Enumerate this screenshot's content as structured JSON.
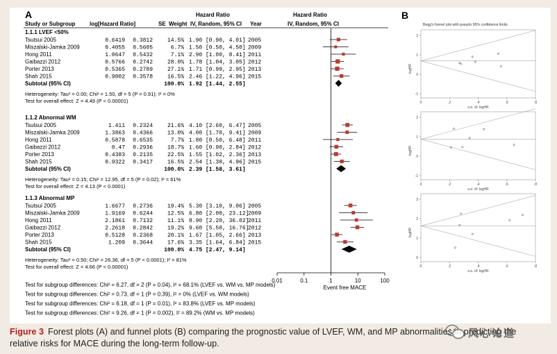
{
  "panel_a": {
    "letter": "A",
    "headers": {
      "study": "Study or Subgroup",
      "log": "log[Hazard Ratio]",
      "se": "SE",
      "weight": "Weight",
      "hr_group": "Hazard Ratio",
      "hr_sub": "IV, Random, 95% CI",
      "year": "Year",
      "plot_group": "Hazard Ratio",
      "plot_sub": "IV, Random, 95% CI"
    },
    "subgroups": [
      {
        "title": "1.1.1 LVEF <50%",
        "rows": [
          {
            "study": "Tsutsui 2005",
            "log": "0.6419",
            "se": "0.3812",
            "weight": "14.5%",
            "ci": "1.90 [0.90, 4.01]",
            "year": "2005",
            "hr": 1.9,
            "lo": 0.9,
            "hi": 4.01
          },
          {
            "study": "Miszalski-Jamka 2009",
            "log": "0.4055",
            "se": "0.5605",
            "weight": "6.7%",
            "ci": "1.50 [0.50, 4.50]",
            "year": "2009",
            "hr": 1.5,
            "lo": 0.5,
            "hi": 4.5
          },
          {
            "study": "Hong 2011",
            "log": "1.0647",
            "se": "0.5432",
            "weight": "7.1%",
            "ci": "2.90 [1.00, 8.41]",
            "year": "2011",
            "hr": 2.9,
            "lo": 1.0,
            "hi": 8.41
          },
          {
            "study": "Gaibazzi 2012",
            "log": "0.5766",
            "se": "0.2742",
            "weight": "28.0%",
            "ci": "1.78 [1.04, 3.05]",
            "year": "2012",
            "hr": 1.78,
            "lo": 1.04,
            "hi": 3.05
          },
          {
            "study": "Porter 2013",
            "log": "0.5365",
            "se": "0.2789",
            "weight": "27.1%",
            "ci": "1.71 [0.99, 2.95]",
            "year": "2013",
            "hr": 1.71,
            "lo": 0.99,
            "hi": 2.95
          },
          {
            "study": "Shah 2015",
            "log": "0.9002",
            "se": "0.3578",
            "weight": "16.5%",
            "ci": "2.46 [1.22, 4.96]",
            "year": "2015",
            "hr": 2.46,
            "lo": 1.22,
            "hi": 4.96
          }
        ],
        "subtotal": {
          "label": "Subtotal (95% CI)",
          "weight": "100.0%",
          "ci": "1.92 [1.44, 2.55]",
          "hr": 1.92,
          "lo": 1.44,
          "hi": 2.55
        },
        "heterogeneity": "Heterogeneity: Tau² = 0.00; Chi² = 1.50, df = 5 (P = 0.91); I² = 0%",
        "overall": "Test for overall effect: Z = 4.49 (P < 0.00001)"
      },
      {
        "title": "1.1.2 Abnormal WM",
        "rows": [
          {
            "study": "Tsutsui 2005",
            "log": "1.411",
            "se": "0.2324",
            "weight": "21.6%",
            "ci": "4.10 [2.60, 6.47]",
            "year": "2005",
            "hr": 4.1,
            "lo": 2.6,
            "hi": 6.47
          },
          {
            "study": "Miszalski-Jamka 2009",
            "log": "1.3863",
            "se": "0.4366",
            "weight": "13.0%",
            "ci": "4.00 [1.70, 9.41]",
            "year": "2009",
            "hr": 4.0,
            "lo": 1.7,
            "hi": 9.41
          },
          {
            "study": "Hong 2011",
            "log": "0.5878",
            "se": "0.6535",
            "weight": "7.7%",
            "ci": "1.80 [0.50, 6.48]",
            "year": "2011",
            "hr": 1.8,
            "lo": 0.5,
            "hi": 6.48
          },
          {
            "study": "Gaibazzi 2012",
            "log": "0.47",
            "se": "0.2936",
            "weight": "18.7%",
            "ci": "1.60 [0.90, 2.84]",
            "year": "2012",
            "hr": 1.6,
            "lo": 0.9,
            "hi": 2.84
          },
          {
            "study": "Porter 2013",
            "log": "0.4383",
            "se": "0.2135",
            "weight": "22.5%",
            "ci": "1.55 [1.02, 2.36]",
            "year": "2013",
            "hr": 1.55,
            "lo": 1.02,
            "hi": 2.36
          },
          {
            "study": "Shah 2015",
            "log": "0.9322",
            "se": "0.3417",
            "weight": "16.5%",
            "ci": "2.54 [1.30, 4.96]",
            "year": "2015",
            "hr": 2.54,
            "lo": 1.3,
            "hi": 4.96
          }
        ],
        "subtotal": {
          "label": "Subtotal (95% CI)",
          "weight": "100.0%",
          "ci": "2.39 [1.58, 3.61]",
          "hr": 2.39,
          "lo": 1.58,
          "hi": 3.61
        },
        "heterogeneity": "Heterogeneity: Tau² = 0.15; Chi² = 12.95, df = 5 (P = 0.02); I² = 61%",
        "overall": "Test for overall effect: Z = 4.13 (P < 0.0001)"
      },
      {
        "title": "1.1.3 Abnormal MP",
        "rows": [
          {
            "study": "Tsutsui 2005",
            "log": "1.6677",
            "se": "0.2736",
            "weight": "19.4%",
            "ci": "5.30 [3.10, 9.06]",
            "year": "2005",
            "hr": 5.3,
            "lo": 3.1,
            "hi": 9.06
          },
          {
            "study": "Miszalski-Jamka 2009",
            "log": "1.9169",
            "se": "0.6244",
            "weight": "12.5%",
            "ci": "6.80 [2.00, 23.12]",
            "year": "2009",
            "hr": 6.8,
            "lo": 2.0,
            "hi": 23.12
          },
          {
            "study": "Hong 2011",
            "log": "2.1861",
            "se": "0.7132",
            "weight": "11.1%",
            "ci": "8.90 [2.20, 36.02]",
            "year": "2011",
            "hr": 8.9,
            "lo": 2.2,
            "hi": 36.02
          },
          {
            "study": "Gaibazzi 2012",
            "log": "2.2618",
            "se": "0.2842",
            "weight": "19.2%",
            "ci": "9.60 [5.50, 16.76]",
            "year": "2012",
            "hr": 9.6,
            "lo": 5.5,
            "hi": 16.76
          },
          {
            "study": "Porter 2013",
            "log": "0.5128",
            "se": "0.2368",
            "weight": "20.1%",
            "ci": "1.67 [1.05, 2.66]",
            "year": "2013",
            "hr": 1.67,
            "lo": 1.05,
            "hi": 2.66
          },
          {
            "study": "Shah 2015",
            "log": "1.209",
            "se": "0.3644",
            "weight": "17.6%",
            "ci": "3.35 [1.64, 6.84]",
            "year": "2015",
            "hr": 3.35,
            "lo": 1.64,
            "hi": 6.84
          }
        ],
        "subtotal": {
          "label": "Subtotal (95% CI)",
          "weight": "100.0%",
          "ci": "4.75 [2.47, 9.14]",
          "hr": 4.75,
          "lo": 2.47,
          "hi": 9.14
        },
        "heterogeneity": "Heterogeneity: Tau² = 0.50; Chi² = 26.36, df = 5 (P < 0.0001); I² = 81%",
        "overall": "Test for overall effect: Z = 4.66 (P < 0.00001)"
      }
    ],
    "axis": {
      "ticks": [
        0.01,
        0.1,
        1,
        10,
        100
      ],
      "tick_labels": [
        "0.01",
        "0.1",
        "1",
        "10",
        "100"
      ],
      "label": "Event free  MACE"
    },
    "tests": [
      "Test for subgroup differences: Chi² = 6.27, df = 2 (P = 0.04), I² = 68.1% (LVEF vs. WM vs. MP models)",
      "Test for subgroup differences: Chi² = 0.73, df = 1 (P = 0.39), I² = 0%      (LVEF vs. WM models)",
      "Test for subgroup differences: Chi² = 6.18, df = 1 (P = 0.01), I² = 83.8% (LVEF vs. MP models)",
      "Test for subgroup differences: Chi² = 9.26, df = 1 (P = 0.002), I² = 89.2% (WM vs. MP models)"
    ]
  },
  "panel_b": {
    "letter": "B",
    "title": "Begg's funnel plot with pseudo 95% confidence limits",
    "ylabel": "logHR",
    "xlabel": "s.e. of: logHR",
    "plots": [
      {
        "yticks": [
          "2",
          "1",
          "0",
          "-1"
        ],
        "xticks": [
          "0",
          ".2",
          ".4",
          ".6",
          ".8"
        ],
        "points": [
          [
            0.38,
            0.64
          ],
          [
            0.56,
            0.41
          ],
          [
            0.54,
            1.06
          ],
          [
            0.27,
            0.58
          ],
          [
            0.28,
            0.54
          ],
          [
            0.36,
            0.9
          ]
        ]
      },
      {
        "yticks": [
          "2",
          "1",
          "0",
          "-1"
        ],
        "xticks": [
          "0",
          ".2",
          ".4",
          ".6",
          ".8"
        ],
        "points": [
          [
            0.23,
            1.41
          ],
          [
            0.44,
            1.39
          ],
          [
            0.65,
            0.59
          ],
          [
            0.29,
            0.47
          ],
          [
            0.21,
            0.44
          ],
          [
            0.34,
            0.93
          ]
        ]
      },
      {
        "yticks": [
          "3",
          "2",
          "1",
          "0"
        ],
        "xticks": [
          "0",
          ".2",
          ".4",
          ".6",
          ".8"
        ],
        "points": [
          [
            0.27,
            1.67
          ],
          [
            0.62,
            1.92
          ],
          [
            0.71,
            2.19
          ],
          [
            0.28,
            2.26
          ],
          [
            0.24,
            0.51
          ],
          [
            0.36,
            1.21
          ]
        ]
      }
    ]
  },
  "colors": {
    "marker": "#c0392b",
    "diamond": "#000000",
    "caption_label": "#b3211d"
  },
  "caption": {
    "label": "Figure 3",
    "text": "Forest plots (A) and funnel plots (B) comparing the prognostic value of LVEF, WM, and MP abnormalities in predicting the relative risks for MACE during the long-term follow-up."
  },
  "watermark": {
    "text": "风心论道"
  }
}
